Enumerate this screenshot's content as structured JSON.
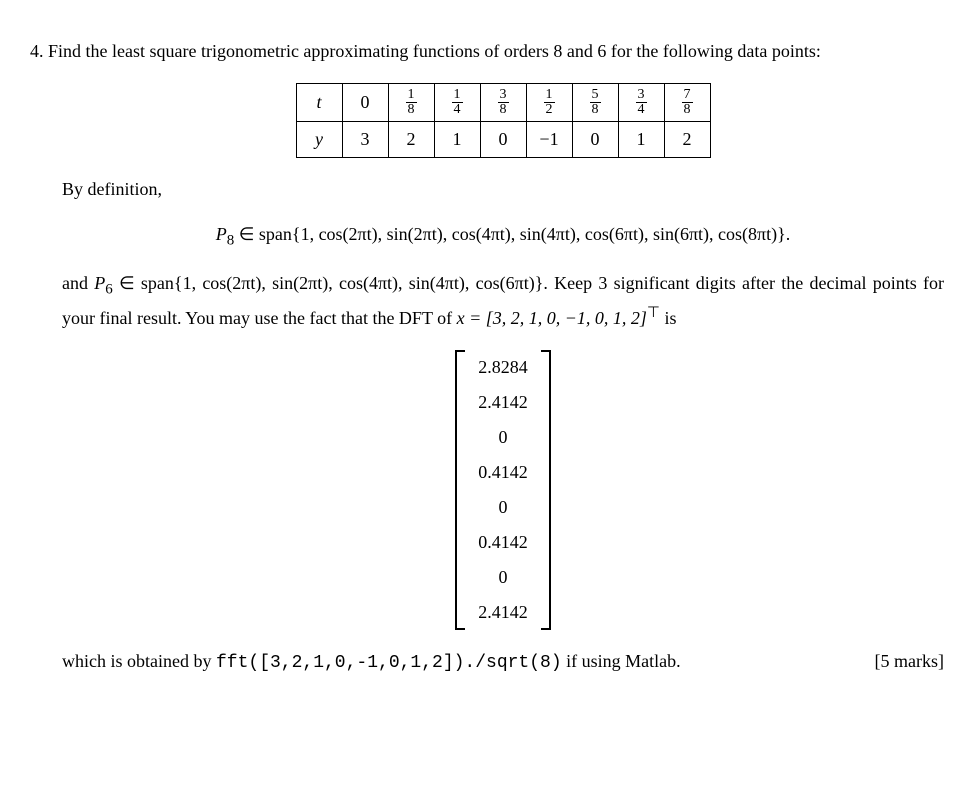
{
  "question": {
    "number": "4.",
    "text1": "Find the least square trigonometric approximating functions of orders 8 and 6 for the following data points:",
    "table": {
      "row_labels": [
        "t",
        "y"
      ],
      "columns": [
        {
          "t": "0",
          "y": "3"
        },
        {
          "t_frac": [
            "1",
            "8"
          ],
          "y": "2"
        },
        {
          "t_frac": [
            "1",
            "4"
          ],
          "y": "1"
        },
        {
          "t_frac": [
            "3",
            "8"
          ],
          "y": "0"
        },
        {
          "t_frac": [
            "1",
            "2"
          ],
          "y": "−1"
        },
        {
          "t_frac": [
            "5",
            "8"
          ],
          "y": "0"
        },
        {
          "t_frac": [
            "3",
            "4"
          ],
          "y": "1"
        },
        {
          "t_frac": [
            "7",
            "8"
          ],
          "y": "2"
        }
      ]
    },
    "by_def": "By definition,",
    "p8_prefix": "P",
    "p8_sub": "8",
    "p8_text": " ∈ span{1, cos(2πt), sin(2πt), cos(4πt), sin(4πt), cos(6πt), sin(6πt), cos(8πt)}.",
    "p6_and": "and ",
    "p6_prefix": "P",
    "p6_sub": "6",
    "p6_text": " ∈ span{1, cos(2πt), sin(2πt), cos(4πt), sin(4πt), cos(6πt)}. Keep 3 significant digits after the decimal points for your final result. You may use the fact that the DFT of ",
    "x_eq": "x = [3, 2, 1, 0, −1, 0, 1, 2]",
    "x_sup": "⊤",
    "x_is": " is",
    "dft": [
      "2.8284",
      "2.4142",
      "0",
      "0.4142",
      "0",
      "0.4142",
      "0",
      "2.4142"
    ],
    "obtained_text": "which is obtained by ",
    "matlab_code": "fft([3,2,1,0,-1,0,1,2])./sqrt(8)",
    "matlab_suffix": " if using Matlab.",
    "marks": "[5 marks]"
  }
}
